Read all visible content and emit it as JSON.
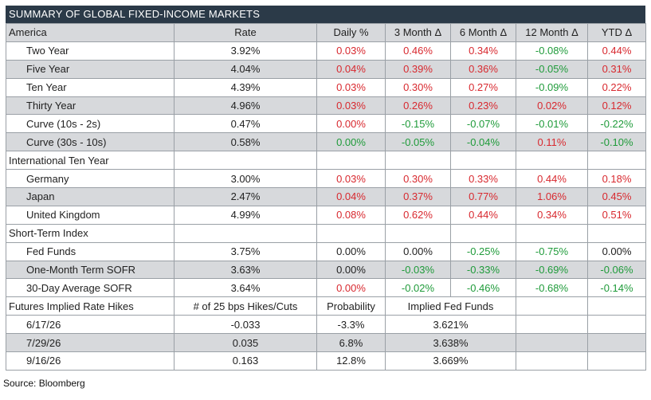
{
  "title": "SUMMARY OF GLOBAL FIXED-INCOME MARKETS",
  "columns": [
    "America",
    "Rate",
    "Daily %",
    "3 Month Δ",
    "6 Month Δ",
    "12 Month Δ",
    "YTD Δ"
  ],
  "colors": {
    "positive_change": "#d8292f",
    "negative_change": "#1f9b3a",
    "header_bg": "#2b3a48",
    "shade": "#d7d9dc"
  },
  "america": [
    {
      "label": "Two Year",
      "rate": "3.92%",
      "daily": [
        "0.03%",
        "red"
      ],
      "m3": [
        "0.46%",
        "red"
      ],
      "m6": [
        "0.34%",
        "red"
      ],
      "m12": [
        "-0.08%",
        "green"
      ],
      "ytd": [
        "0.44%",
        "red"
      ]
    },
    {
      "label": "Five Year",
      "rate": "4.04%",
      "daily": [
        "0.04%",
        "red"
      ],
      "m3": [
        "0.39%",
        "red"
      ],
      "m6": [
        "0.36%",
        "red"
      ],
      "m12": [
        "-0.05%",
        "green"
      ],
      "ytd": [
        "0.31%",
        "red"
      ]
    },
    {
      "label": "Ten Year",
      "rate": "4.39%",
      "daily": [
        "0.03%",
        "red"
      ],
      "m3": [
        "0.30%",
        "red"
      ],
      "m6": [
        "0.27%",
        "red"
      ],
      "m12": [
        "-0.09%",
        "green"
      ],
      "ytd": [
        "0.22%",
        "red"
      ]
    },
    {
      "label": "Thirty Year",
      "rate": "4.96%",
      "daily": [
        "0.03%",
        "red"
      ],
      "m3": [
        "0.26%",
        "red"
      ],
      "m6": [
        "0.23%",
        "red"
      ],
      "m12": [
        "0.02%",
        "red"
      ],
      "ytd": [
        "0.12%",
        "red"
      ]
    },
    {
      "label": "Curve (10s - 2s)",
      "rate": "0.47%",
      "daily": [
        "0.00%",
        "red"
      ],
      "m3": [
        "-0.15%",
        "green"
      ],
      "m6": [
        "-0.07%",
        "green"
      ],
      "m12": [
        "-0.01%",
        "green"
      ],
      "ytd": [
        "-0.22%",
        "green"
      ]
    },
    {
      "label": "Curve (30s - 10s)",
      "rate": "0.58%",
      "daily": [
        "0.00%",
        "green"
      ],
      "m3": [
        "-0.05%",
        "green"
      ],
      "m6": [
        "-0.04%",
        "green"
      ],
      "m12": [
        "0.11%",
        "red"
      ],
      "ytd": [
        "-0.10%",
        "green"
      ]
    }
  ],
  "international_header": "International Ten Year",
  "international": [
    {
      "label": "Germany",
      "rate": "3.00%",
      "daily": [
        "0.03%",
        "red"
      ],
      "m3": [
        "0.30%",
        "red"
      ],
      "m6": [
        "0.33%",
        "red"
      ],
      "m12": [
        "0.44%",
        "red"
      ],
      "ytd": [
        "0.18%",
        "red"
      ]
    },
    {
      "label": "Japan",
      "rate": "2.47%",
      "daily": [
        "0.04%",
        "red"
      ],
      "m3": [
        "0.37%",
        "red"
      ],
      "m6": [
        "0.77%",
        "red"
      ],
      "m12": [
        "1.06%",
        "red"
      ],
      "ytd": [
        "0.45%",
        "red"
      ]
    },
    {
      "label": "United Kingdom",
      "rate": "4.99%",
      "daily": [
        "0.08%",
        "red"
      ],
      "m3": [
        "0.62%",
        "red"
      ],
      "m6": [
        "0.44%",
        "red"
      ],
      "m12": [
        "0.34%",
        "red"
      ],
      "ytd": [
        "0.51%",
        "red"
      ]
    }
  ],
  "short_term_header": "Short-Term Index",
  "short_term": [
    {
      "label": "Fed Funds",
      "rate": "3.75%",
      "daily": [
        "0.00%",
        "black"
      ],
      "m3": [
        "0.00%",
        "black"
      ],
      "m6": [
        "-0.25%",
        "green"
      ],
      "m12": [
        "-0.75%",
        "green"
      ],
      "ytd": [
        "0.00%",
        "black"
      ]
    },
    {
      "label": "One-Month Term SOFR",
      "rate": "3.63%",
      "daily": [
        "0.00%",
        "black"
      ],
      "m3": [
        "-0.03%",
        "green"
      ],
      "m6": [
        "-0.33%",
        "green"
      ],
      "m12": [
        "-0.69%",
        "green"
      ],
      "ytd": [
        "-0.06%",
        "green"
      ]
    },
    {
      "label": "30-Day Average SOFR",
      "rate": "3.64%",
      "daily": [
        "0.00%",
        "red"
      ],
      "m3": [
        "-0.02%",
        "green"
      ],
      "m6": [
        "-0.46%",
        "green"
      ],
      "m12": [
        "-0.68%",
        "green"
      ],
      "ytd": [
        "-0.14%",
        "green"
      ]
    }
  ],
  "futures_header": {
    "label": "Futures Implied Rate Hikes",
    "hikes": "# of 25 bps Hikes/Cuts",
    "probability": "Probability",
    "implied": "Implied Fed Funds"
  },
  "futures": [
    {
      "date": "6/17/26",
      "hikes": "-0.033",
      "probability": "-3.3%",
      "implied": "3.621%"
    },
    {
      "date": "7/29/26",
      "hikes": "0.035",
      "probability": "6.8%",
      "implied": "3.638%"
    },
    {
      "date": "9/16/26",
      "hikes": "0.163",
      "probability": "12.8%",
      "implied": "3.669%"
    }
  ],
  "source": "Source: Bloomberg"
}
